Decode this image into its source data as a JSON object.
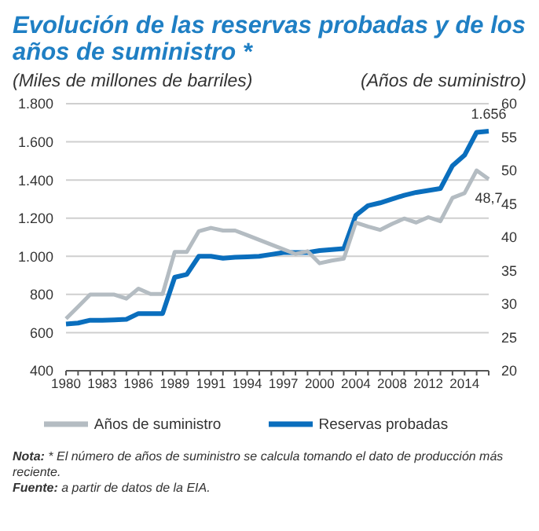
{
  "chart_data": {
    "type": "line",
    "title": "Evolución de las reservas probadas y de los años de suministro *",
    "ylabel": "(Miles de millones de barriles)",
    "y2label": "(Años de suministro)",
    "categories": [
      "1980",
      null,
      null,
      "1983",
      null,
      null,
      "1986",
      null,
      null,
      "1989",
      null,
      null,
      "1991",
      null,
      null,
      "1994",
      null,
      null,
      "1997",
      null,
      null,
      "2000",
      null,
      null,
      "2004",
      null,
      null,
      "2008",
      null,
      null,
      "2012",
      null,
      null,
      "2014",
      null,
      null
    ],
    "series": [
      {
        "name": "Reservas probadas",
        "color": "#0a6ebd",
        "values": [
          645,
          650,
          665,
          665,
          667,
          670,
          700,
          700,
          700,
          890,
          905,
          1000,
          1000,
          990,
          995,
          997,
          1000,
          1010,
          1020,
          1020,
          1020,
          1030,
          1035,
          1040,
          1215,
          1265,
          1280,
          1300,
          1320,
          1335,
          1345,
          1355,
          1475,
          1530,
          1650,
          1656
        ],
        "value_labels": [
          null,
          null,
          null,
          null,
          null,
          null,
          null,
          null,
          null,
          null,
          null,
          null,
          null,
          null,
          null,
          null,
          null,
          null,
          null,
          null,
          null,
          null,
          null,
          null,
          null,
          null,
          null,
          null,
          null,
          null,
          null,
          null,
          null,
          null,
          null,
          "1.656"
        ]
      },
      {
        "name": "Años de suministro",
        "color": "#b4bcc2",
        "axis": "y2",
        "values": [
          27.8,
          29.6,
          31.4,
          31.4,
          31.4,
          30.8,
          32.3,
          31.5,
          31.5,
          37.8,
          37.8,
          40.9,
          41.4,
          41.0,
          41.0,
          40.3,
          39.6,
          38.9,
          38.2,
          37.5,
          37.9,
          36.1,
          36.5,
          36.8,
          42.2,
          41.6,
          41.1,
          42.0,
          42.8,
          42.2,
          43.0,
          42.4,
          45.9,
          46.6,
          50.0,
          48.7
        ],
        "value_labels": [
          null,
          null,
          null,
          null,
          null,
          null,
          null,
          null,
          null,
          null,
          null,
          null,
          null,
          null,
          null,
          null,
          null,
          null,
          null,
          null,
          null,
          null,
          null,
          null,
          null,
          null,
          null,
          null,
          null,
          null,
          null,
          null,
          null,
          null,
          null,
          "48,7"
        ]
      }
    ],
    "ylim": [
      400,
      1800
    ],
    "yticks": [
      400,
      600,
      800,
      {
        "value": 1000,
        "label": "1.000"
      },
      {
        "value": 1200,
        "label": "1.200"
      },
      {
        "value": 1400,
        "label": "1.400"
      },
      {
        "value": 1600,
        "label": "1.600"
      },
      {
        "value": 1800,
        "label": "1.800"
      }
    ],
    "y2lim": [
      20,
      60
    ],
    "y2ticks": [
      20,
      25,
      30,
      35,
      40,
      45,
      50,
      55,
      60
    ],
    "grid": "y",
    "legend": "bottom",
    "marker": "none",
    "line_style": "solid",
    "annotations": [
      "Nota: * El número de años de suministro se calcula tomando el dato de producción más reciente.",
      "Fuente: a partir de datos de la EIA."
    ]
  }
}
